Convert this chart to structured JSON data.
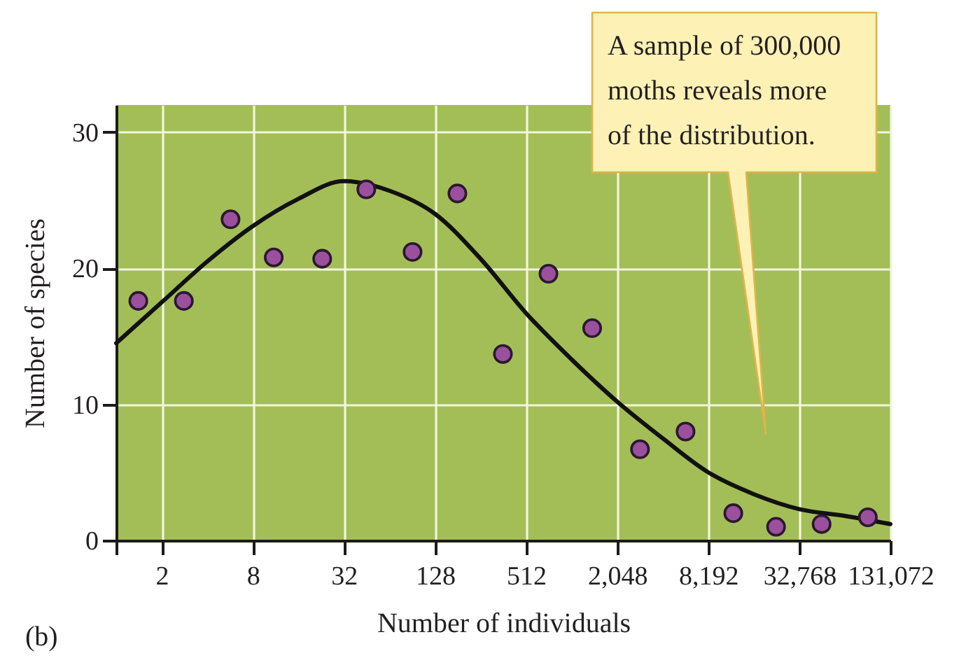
{
  "chart_data": {
    "type": "scatter",
    "xlabel": "Number of individuals",
    "ylabel": "Number of species",
    "log": "x",
    "grid": true,
    "xlim": [
      1,
      131072
    ],
    "xticks": [
      {
        "value": 1,
        "label": null
      },
      2,
      8,
      32,
      128,
      512,
      {
        "value": 2048,
        "label": "2,048"
      },
      {
        "value": 8192,
        "label": "8,192"
      },
      {
        "value": 32768,
        "label": "32,768"
      },
      {
        "value": 131072,
        "label": "131,072"
      }
    ],
    "ylim": [
      0,
      32
    ],
    "yticks": [
      0,
      10,
      20,
      30
    ],
    "series": [
      {
        "type": "line",
        "color": "#111111",
        "line_style": "solid",
        "x": [
          1,
          2,
          4,
          8,
          16,
          32,
          64,
          128,
          256,
          512,
          1024,
          2048,
          4096,
          8192,
          16384,
          32768,
          65536,
          131072
        ],
        "values": [
          14.5,
          17.5,
          20.5,
          23.1,
          25.1,
          26.4,
          25.7,
          24.0,
          20.7,
          16.7,
          13.3,
          10.2,
          7.5,
          5.0,
          3.4,
          2.3,
          1.8,
          1.2
        ]
      },
      {
        "type": "scatter",
        "color": "#9b509d",
        "marker": "circle",
        "x": [
          1.4,
          2.8,
          5.7,
          11,
          23,
          45,
          91,
          180,
          360,
          720,
          1400,
          2900,
          5800,
          12000,
          23000,
          46000,
          93000
        ],
        "values": [
          17.6,
          17.6,
          23.6,
          20.8,
          20.7,
          25.8,
          21.2,
          25.5,
          13.7,
          19.6,
          15.6,
          6.7,
          8.0,
          2.0,
          1.0,
          1.2,
          1.7
        ]
      }
    ],
    "annotations": [
      "A sample of 300,000\nmoths reveals more\nof the distribution.",
      "(b)"
    ]
  }
}
